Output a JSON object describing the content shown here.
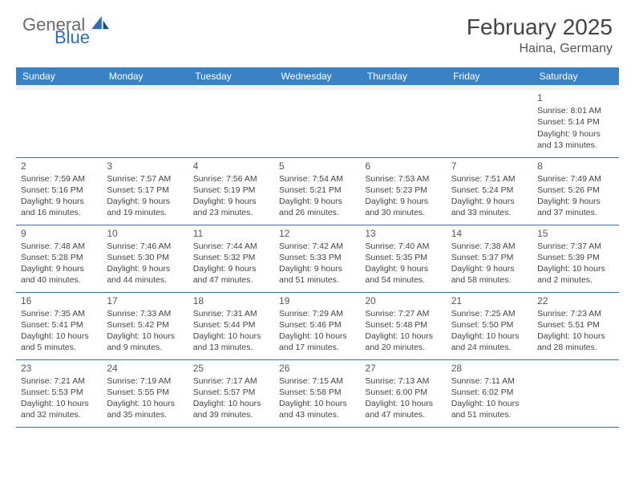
{
  "logo": {
    "general": "General",
    "blue": "Blue"
  },
  "header": {
    "title": "February 2025",
    "location": "Haina, Germany"
  },
  "colors": {
    "header_bg": "#3b82c4",
    "header_fg": "#ffffff",
    "rule": "#3b6fa8",
    "text": "#444444"
  },
  "dayNames": [
    "Sunday",
    "Monday",
    "Tuesday",
    "Wednesday",
    "Thursday",
    "Friday",
    "Saturday"
  ],
  "weeks": [
    [
      null,
      null,
      null,
      null,
      null,
      null,
      {
        "n": "1",
        "sr": "8:01 AM",
        "ss": "5:14 PM",
        "dl": "9 hours and 13 minutes."
      }
    ],
    [
      {
        "n": "2",
        "sr": "7:59 AM",
        "ss": "5:16 PM",
        "dl": "9 hours and 16 minutes."
      },
      {
        "n": "3",
        "sr": "7:57 AM",
        "ss": "5:17 PM",
        "dl": "9 hours and 19 minutes."
      },
      {
        "n": "4",
        "sr": "7:56 AM",
        "ss": "5:19 PM",
        "dl": "9 hours and 23 minutes."
      },
      {
        "n": "5",
        "sr": "7:54 AM",
        "ss": "5:21 PM",
        "dl": "9 hours and 26 minutes."
      },
      {
        "n": "6",
        "sr": "7:53 AM",
        "ss": "5:23 PM",
        "dl": "9 hours and 30 minutes."
      },
      {
        "n": "7",
        "sr": "7:51 AM",
        "ss": "5:24 PM",
        "dl": "9 hours and 33 minutes."
      },
      {
        "n": "8",
        "sr": "7:49 AM",
        "ss": "5:26 PM",
        "dl": "9 hours and 37 minutes."
      }
    ],
    [
      {
        "n": "9",
        "sr": "7:48 AM",
        "ss": "5:28 PM",
        "dl": "9 hours and 40 minutes."
      },
      {
        "n": "10",
        "sr": "7:46 AM",
        "ss": "5:30 PM",
        "dl": "9 hours and 44 minutes."
      },
      {
        "n": "11",
        "sr": "7:44 AM",
        "ss": "5:32 PM",
        "dl": "9 hours and 47 minutes."
      },
      {
        "n": "12",
        "sr": "7:42 AM",
        "ss": "5:33 PM",
        "dl": "9 hours and 51 minutes."
      },
      {
        "n": "13",
        "sr": "7:40 AM",
        "ss": "5:35 PM",
        "dl": "9 hours and 54 minutes."
      },
      {
        "n": "14",
        "sr": "7:38 AM",
        "ss": "5:37 PM",
        "dl": "9 hours and 58 minutes."
      },
      {
        "n": "15",
        "sr": "7:37 AM",
        "ss": "5:39 PM",
        "dl": "10 hours and 2 minutes."
      }
    ],
    [
      {
        "n": "16",
        "sr": "7:35 AM",
        "ss": "5:41 PM",
        "dl": "10 hours and 5 minutes."
      },
      {
        "n": "17",
        "sr": "7:33 AM",
        "ss": "5:42 PM",
        "dl": "10 hours and 9 minutes."
      },
      {
        "n": "18",
        "sr": "7:31 AM",
        "ss": "5:44 PM",
        "dl": "10 hours and 13 minutes."
      },
      {
        "n": "19",
        "sr": "7:29 AM",
        "ss": "5:46 PM",
        "dl": "10 hours and 17 minutes."
      },
      {
        "n": "20",
        "sr": "7:27 AM",
        "ss": "5:48 PM",
        "dl": "10 hours and 20 minutes."
      },
      {
        "n": "21",
        "sr": "7:25 AM",
        "ss": "5:50 PM",
        "dl": "10 hours and 24 minutes."
      },
      {
        "n": "22",
        "sr": "7:23 AM",
        "ss": "5:51 PM",
        "dl": "10 hours and 28 minutes."
      }
    ],
    [
      {
        "n": "23",
        "sr": "7:21 AM",
        "ss": "5:53 PM",
        "dl": "10 hours and 32 minutes."
      },
      {
        "n": "24",
        "sr": "7:19 AM",
        "ss": "5:55 PM",
        "dl": "10 hours and 35 minutes."
      },
      {
        "n": "25",
        "sr": "7:17 AM",
        "ss": "5:57 PM",
        "dl": "10 hours and 39 minutes."
      },
      {
        "n": "26",
        "sr": "7:15 AM",
        "ss": "5:58 PM",
        "dl": "10 hours and 43 minutes."
      },
      {
        "n": "27",
        "sr": "7:13 AM",
        "ss": "6:00 PM",
        "dl": "10 hours and 47 minutes."
      },
      {
        "n": "28",
        "sr": "7:11 AM",
        "ss": "6:02 PM",
        "dl": "10 hours and 51 minutes."
      },
      null
    ]
  ],
  "labels": {
    "sunrise": "Sunrise:",
    "sunset": "Sunset:",
    "daylight": "Daylight:"
  }
}
